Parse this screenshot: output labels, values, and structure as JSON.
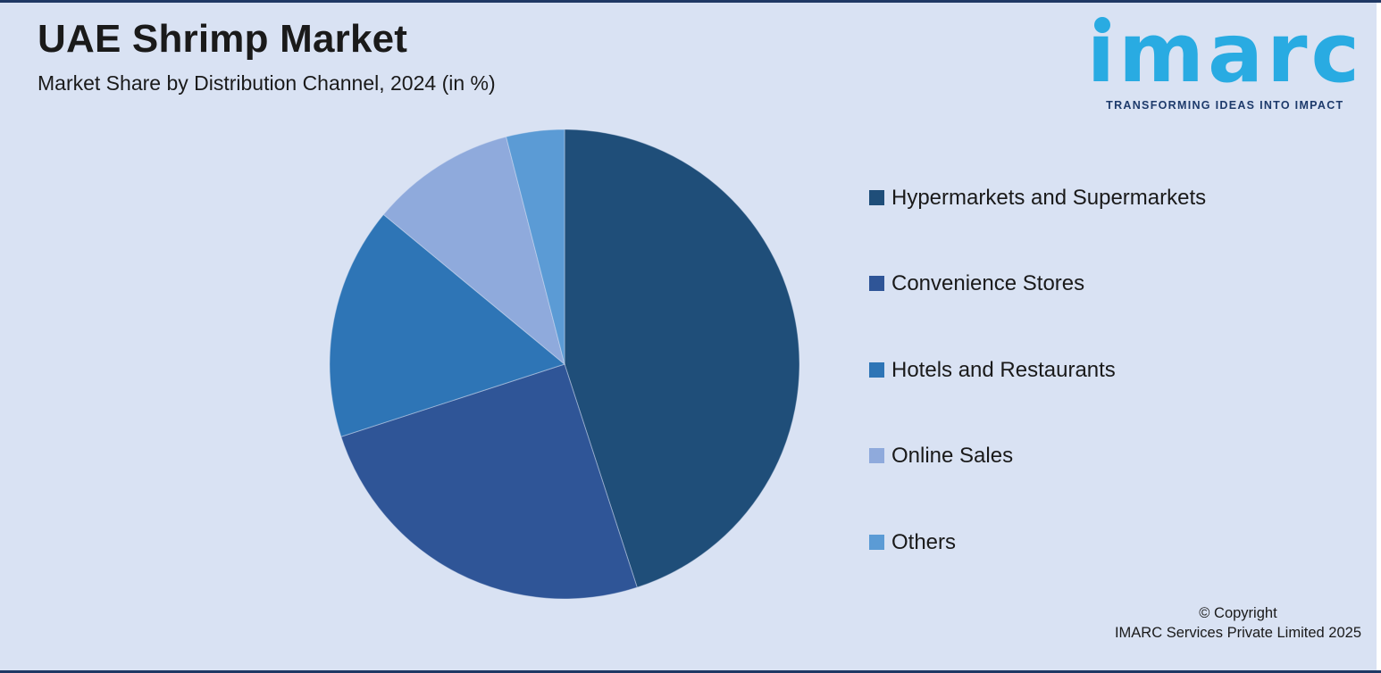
{
  "header": {
    "title": "UAE Shrimp Market",
    "subtitle": "Market Share by Distribution Channel, 2024 (in %)"
  },
  "logo": {
    "brand": "imarc",
    "tagline": "TRANSFORMING IDEAS INTO IMPACT",
    "brand_color": "#29abe2",
    "tagline_color": "#1d3a6b"
  },
  "chart_data": {
    "type": "pie",
    "title": "UAE Shrimp Market — Market Share by Distribution Channel, 2024 (in %)",
    "values_unit": "%",
    "start_angle": "12 o'clock",
    "direction": "clockwise",
    "legend_position": "right",
    "data_labels_shown": false,
    "slices": [
      {
        "label": "Hypermarkets and Supermarkets",
        "value": 45,
        "color": "#1f4e79"
      },
      {
        "label": "Convenience Stores",
        "value": 25,
        "color": "#2f5597"
      },
      {
        "label": "Hotels and Restaurants",
        "value": 16,
        "color": "#2e75b6"
      },
      {
        "label": "Online Sales",
        "value": 10,
        "color": "#8faadc"
      },
      {
        "label": "Others",
        "value": 4,
        "color": "#5b9bd5"
      }
    ],
    "total": 100
  },
  "footer": {
    "copyright_line1": "© Copyright",
    "copyright_line2": "IMARC Services Private Limited 2025"
  },
  "theme": {
    "background": "#d9e2f3",
    "border_color": "#1f3864",
    "text_color": "#1a1a1a"
  }
}
